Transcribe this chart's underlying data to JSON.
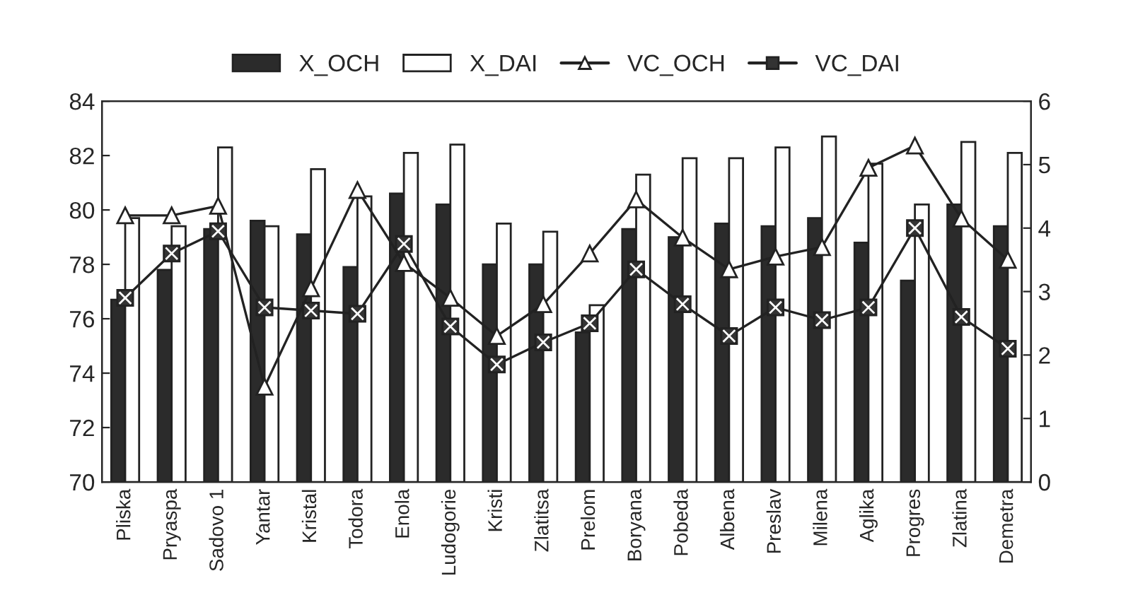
{
  "chart_data": {
    "type": "bar",
    "categories": [
      "Pliska",
      "Pryaspa",
      "Sadovo 1",
      "Yantar",
      "Kristal",
      "Todora",
      "Enola",
      "Ludogorie",
      "Kristi",
      "Zlatitsa",
      "Prelom",
      "Boryana",
      "Pobeda",
      "Albena",
      "Preslav",
      "Milena",
      "Aglika",
      "Progres",
      "Zlatina",
      "Demetra"
    ],
    "series": [
      {
        "name": "X_OCH",
        "color": "#2b2b2b",
        "values": [
          76.7,
          77.8,
          79.3,
          79.6,
          79.1,
          77.9,
          80.6,
          80.2,
          78.0,
          78.0,
          75.5,
          79.3,
          79.0,
          79.5,
          79.4,
          79.7,
          78.8,
          77.4,
          80.2,
          79.4
        ]
      },
      {
        "name": "X_DAI",
        "color": "#ffffff",
        "values": [
          79.7,
          79.4,
          82.3,
          79.4,
          81.5,
          80.5,
          82.1,
          82.4,
          79.5,
          79.2,
          76.5,
          81.3,
          81.9,
          81.9,
          82.3,
          82.7,
          81.7,
          80.2,
          82.5,
          82.1
        ]
      },
      {
        "name": "VC_OCH",
        "type": "line",
        "axis": "y2",
        "marker": "triangle",
        "color": "#222222",
        "values": [
          4.2,
          4.2,
          4.35,
          1.5,
          3.05,
          4.6,
          3.45,
          2.9,
          2.3,
          2.8,
          3.6,
          4.45,
          3.85,
          3.35,
          3.55,
          3.7,
          4.95,
          5.3,
          4.15,
          3.5
        ]
      },
      {
        "name": "VC_DAI",
        "type": "line",
        "axis": "y2",
        "marker": "square",
        "color": "#222222",
        "values": [
          2.9,
          3.6,
          3.95,
          2.75,
          2.7,
          2.65,
          3.75,
          2.45,
          1.85,
          2.2,
          2.5,
          3.35,
          2.8,
          2.3,
          2.75,
          2.55,
          2.75,
          4.0,
          2.6,
          2.1
        ]
      }
    ],
    "ylim": [
      70,
      84
    ],
    "yticks": [
      70,
      72,
      74,
      76,
      78,
      80,
      82,
      84
    ],
    "y2lim": [
      0,
      6
    ],
    "y2ticks": [
      0,
      1,
      2,
      3,
      4,
      5,
      6
    ],
    "legend": "top",
    "grid": false
  }
}
